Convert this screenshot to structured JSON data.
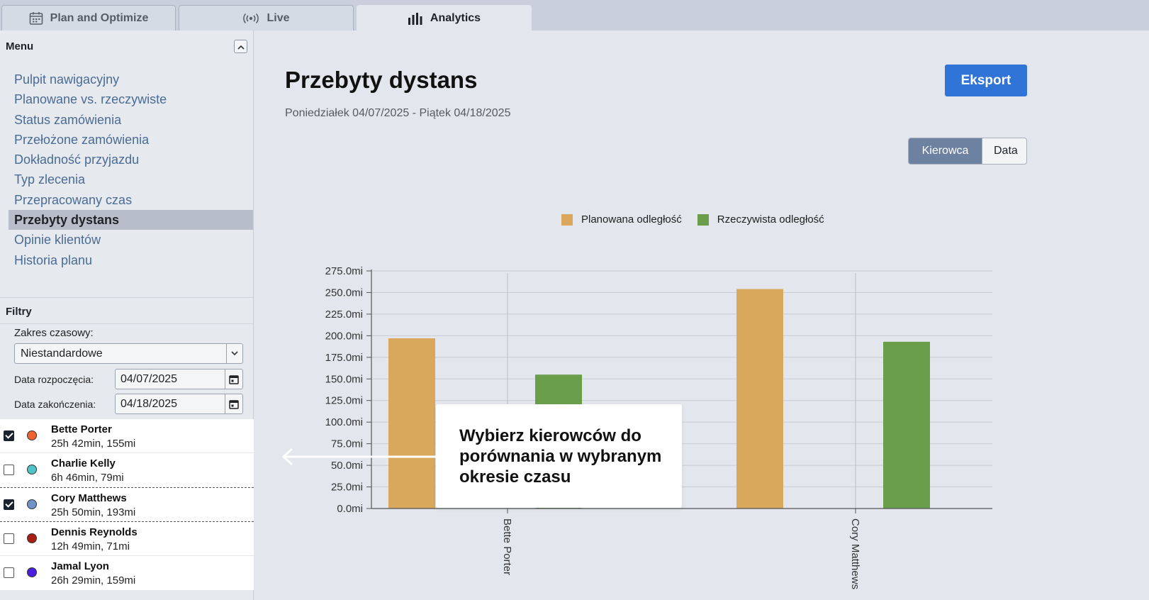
{
  "tabs": [
    {
      "label": "Plan and Optimize",
      "icon": "calendar-icon",
      "active": false
    },
    {
      "label": "Live",
      "icon": "broadcast-icon",
      "active": false
    },
    {
      "label": "Analytics",
      "icon": "bar-chart-icon",
      "active": true
    }
  ],
  "sidebar": {
    "menu_title": "Menu",
    "items": [
      {
        "label": "Pulpit nawigacyjny"
      },
      {
        "label": "Planowane vs. rzeczywiste"
      },
      {
        "label": "Status zamówienia"
      },
      {
        "label": "Przełożone zamówienia"
      },
      {
        "label": "Dokładność przyjazdu"
      },
      {
        "label": "Typ zlecenia"
      },
      {
        "label": "Przepracowany czas"
      },
      {
        "label": "Przebyty dystans",
        "active": true
      },
      {
        "label": "Opinie klientów"
      },
      {
        "label": "Historia planu"
      }
    ],
    "filters": {
      "title": "Filtry",
      "range_label": "Zakres czasowy:",
      "range_value": "Niestandardowe",
      "start_label": "Data rozpoczęcia:",
      "start_value": "04/07/2025",
      "end_label": "Data zakończenia:",
      "end_value": "04/18/2025"
    },
    "drivers": [
      {
        "name": "Bette Porter",
        "stats": "25h 42min, 155mi",
        "checked": true,
        "color": "#f0622e"
      },
      {
        "name": "Charlie Kelly",
        "stats": "6h 46min, 79mi",
        "checked": false,
        "color": "#4fc3c8"
      },
      {
        "name": "Cory Matthews",
        "stats": "25h 50min, 193mi",
        "checked": true,
        "color": "#6f93c9"
      },
      {
        "name": "Dennis Reynolds",
        "stats": "12h 49min, 71mi",
        "checked": false,
        "color": "#a81e12"
      },
      {
        "name": "Jamal Lyon",
        "stats": "26h 29min, 159mi",
        "checked": false,
        "color": "#4a1ee0"
      }
    ]
  },
  "main": {
    "title": "Przebyty dystans",
    "subtitle": "Poniedziałek 04/07/2025 - Piątek 04/18/2025",
    "export_label": "Eksport",
    "toggle": {
      "driver": "Kierowca",
      "date": "Data"
    },
    "callout": "Wybierz kierowców do porównania w wybranym okresie czasu"
  },
  "colors": {
    "planned": "#d9a85c",
    "actual": "#6b9e4a",
    "accent": "#2f74d6"
  },
  "chart_data": {
    "type": "bar",
    "categories": [
      "Bette Porter",
      "Cory Matthews"
    ],
    "series": [
      {
        "name": "Planowana odległość",
        "values": [
          197,
          254
        ],
        "color": "#d9a85c"
      },
      {
        "name": "Rzeczywista odległość",
        "values": [
          155,
          193
        ],
        "color": "#6b9e4a"
      }
    ],
    "ylim": [
      0,
      275
    ],
    "yticks": [
      "0.0mi",
      "25.0mi",
      "50.0mi",
      "75.0mi",
      "100.0mi",
      "125.0mi",
      "150.0mi",
      "175.0mi",
      "200.0mi",
      "225.0mi",
      "250.0mi",
      "275.0mi"
    ],
    "grid": true,
    "legend": "top-center"
  }
}
